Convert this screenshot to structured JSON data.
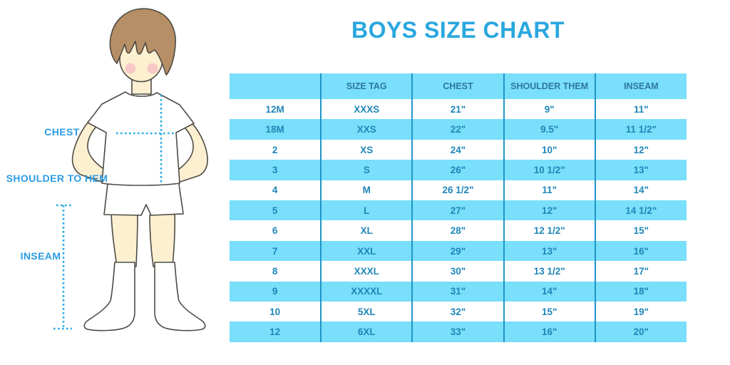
{
  "chart_data": {
    "type": "table",
    "title": "BOYS SIZE CHART",
    "columns": [
      "",
      "SIZE TAG",
      "CHEST",
      "SHOULDER THEM",
      "INSEAM"
    ],
    "rows": [
      [
        "12M",
        "XXXS",
        "21\"",
        "9\"",
        "11\""
      ],
      [
        "18M",
        "XXS",
        "22\"",
        "9.5\"",
        "11 1/2\""
      ],
      [
        "2",
        "XS",
        "24\"",
        "10\"",
        "12\""
      ],
      [
        "3",
        "S",
        "26\"",
        "10 1/2\"",
        "13\""
      ],
      [
        "4",
        "M",
        "26 1/2\"",
        "11\"",
        "14\""
      ],
      [
        "5",
        "L",
        "27\"",
        "12\"",
        "14 1/2\""
      ],
      [
        "6",
        "XL",
        "28\"",
        "12 1/2\"",
        "15\""
      ],
      [
        "7",
        "XXL",
        "29\"",
        "13\"",
        "16\""
      ],
      [
        "8",
        "XXXL",
        "30\"",
        "13 1/2\"",
        "17\""
      ],
      [
        "9",
        "XXXXL",
        "31\"",
        "14\"",
        "18\""
      ],
      [
        "10",
        "5XL",
        "32\"",
        "15\"",
        "19\""
      ],
      [
        "12",
        "6XL",
        "33\"",
        "16\"",
        "20\""
      ]
    ]
  },
  "figure_labels": {
    "chest": "CHEST",
    "shoulder_to_hem": "SHOULDER TO HEM",
    "inseam": "INSEAM"
  },
  "colors": {
    "title_blue": "#2aa7de",
    "row_blue": "#79dffa",
    "divider": "#2095c8",
    "table_text": "#1f86b8",
    "header_text": "#2d76a0",
    "label_blue": "#2b9ce4",
    "dotted": "#29abe2",
    "skin": "#fdf0d1",
    "hair": "#b78f66",
    "outline": "#4d4b45",
    "blush": "#f2a9bd"
  }
}
